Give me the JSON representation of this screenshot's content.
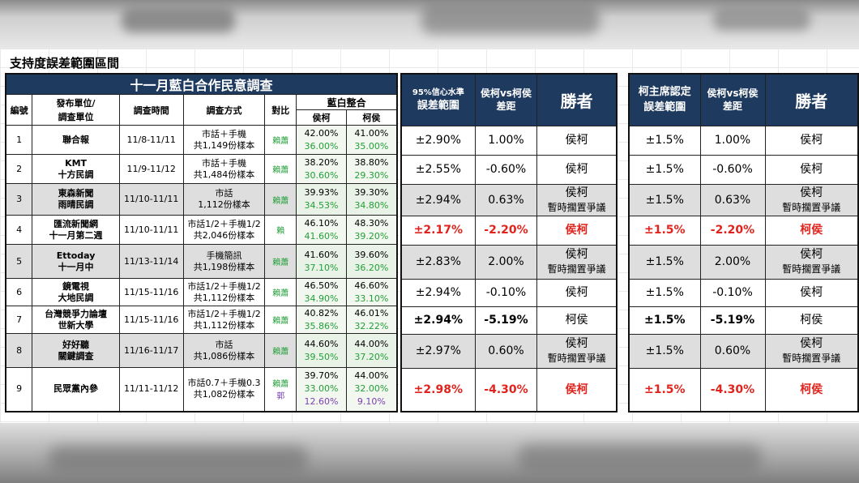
{
  "page_title": "支持度誤差範圍區間",
  "main_table": {
    "title": "十一月藍白合作民意調查",
    "headers": {
      "no": "編號",
      "publisher": "發布單位/\n調查單位",
      "period": "調查時間",
      "method": "調查方式",
      "compare": "對比",
      "combo": "藍白整合",
      "hk": "侯柯",
      "kh": "柯侯"
    },
    "rows": [
      {
        "no": "1",
        "pub1": "聯合報",
        "pub2": "",
        "period": "11/8-11/11",
        "m1": "市話＋手機",
        "m2": "共1,149份樣本",
        "cmp1": "賴蕭",
        "cmp2": "",
        "hk1": "42.00%",
        "hk2": "36.00%",
        "hk3": "",
        "kh1": "41.00%",
        "kh2": "35.00%",
        "kh3": ""
      },
      {
        "no": "2",
        "pub1": "KMT",
        "pub2": "十方民調",
        "period": "11/9-11/12",
        "m1": "市話＋手機",
        "m2": "共1,484份樣本",
        "cmp1": "賴蕭",
        "cmp2": "",
        "hk1": "38.20%",
        "hk2": "30.60%",
        "hk3": "",
        "kh1": "38.80%",
        "kh2": "29.30%",
        "kh3": ""
      },
      {
        "no": "3",
        "pub1": "東森新聞",
        "pub2": "雨晴民調",
        "period": "11/10-11/11",
        "m1": "市話",
        "m2": "1,112份樣本",
        "cmp1": "賴蕭",
        "cmp2": "",
        "hk1": "39.93%",
        "hk2": "34.53%",
        "hk3": "",
        "kh1": "39.30%",
        "kh2": "34.80%",
        "kh3": ""
      },
      {
        "no": "4",
        "pub1": "匯流新聞網",
        "pub2": "十一月第二週",
        "period": "11/10-11/11",
        "m1": "市話1/2＋手機1/2",
        "m2": "共2,046份樣本",
        "cmp1": "賴",
        "cmp2": "",
        "hk1": "46.10%",
        "hk2": "41.60%",
        "hk3": "",
        "kh1": "48.30%",
        "kh2": "39.20%",
        "kh3": ""
      },
      {
        "no": "5",
        "pub1": "Ettoday",
        "pub2": "十一月中",
        "period": "11/13-11/14",
        "m1": "手機簡訊",
        "m2": "共1,198份樣本",
        "cmp1": "賴蕭",
        "cmp2": "",
        "hk1": "41.60%",
        "hk2": "37.10%",
        "hk3": "",
        "kh1": "39.60%",
        "kh2": "36.20%",
        "kh3": ""
      },
      {
        "no": "6",
        "pub1": "鏡電視",
        "pub2": "大地民調",
        "period": "11/15-11/16",
        "m1": "市話1/2＋手機1/2",
        "m2": "共1,112份樣本",
        "cmp1": "賴蕭",
        "cmp2": "",
        "hk1": "46.50%",
        "hk2": "34.90%",
        "hk3": "",
        "kh1": "46.60%",
        "kh2": "33.10%",
        "kh3": ""
      },
      {
        "no": "7",
        "pub1": "台灣競爭力論壇",
        "pub2": "世新大學",
        "period": "11/15-11/16",
        "m1": "市話1/2＋手機1/2",
        "m2": "共1,112份樣本",
        "cmp1": "賴蕭",
        "cmp2": "",
        "hk1": "40.82%",
        "hk2": "35.86%",
        "hk3": "",
        "kh1": "46.01%",
        "kh2": "32.22%",
        "kh3": ""
      },
      {
        "no": "8",
        "pub1": "好好聽",
        "pub2": "關鍵調查",
        "period": "11/16-11/17",
        "m1": "市話",
        "m2": "共1,086份樣本",
        "cmp1": "賴蕭",
        "cmp2": "",
        "hk1": "44.60%",
        "hk2": "39.50%",
        "hk3": "",
        "kh1": "44.00%",
        "kh2": "37.20%",
        "kh3": ""
      },
      {
        "no": "9",
        "pub1": "民眾黨內參",
        "pub2": "",
        "period": "11/11-11/12",
        "m1": "市話0.7＋手機0.3",
        "m2": "共1,082份樣本",
        "cmp1": "賴蕭",
        "cmp2": "郭",
        "hk1": "39.70%",
        "hk2": "33.00%",
        "hk3": "12.60%",
        "kh1": "44.00%",
        "kh2": "32.00%",
        "kh3": "9.10%"
      }
    ]
  },
  "table_95": {
    "headers": {
      "margin_top": "95%信心水準",
      "margin_bottom": "誤差範圍",
      "diff_top": "侯柯vs柯侯",
      "diff_bottom": "差距",
      "winner": "勝者"
    },
    "rows": [
      {
        "margin": "±2.90%",
        "diff": "1.00%",
        "w1": "侯柯",
        "w2": "",
        "red": false
      },
      {
        "margin": "±2.55%",
        "diff": "-0.60%",
        "w1": "侯柯",
        "w2": "",
        "red": false
      },
      {
        "margin": "±2.94%",
        "diff": "0.63%",
        "w1": "侯柯",
        "w2": "暫時擱置爭議",
        "red": false
      },
      {
        "margin": "±2.17%",
        "diff": "-2.20%",
        "w1": "侯柯",
        "w2": "",
        "red": true
      },
      {
        "margin": "±2.83%",
        "diff": "2.00%",
        "w1": "侯柯",
        "w2": "暫時擱置爭議",
        "red": false
      },
      {
        "margin": "±2.94%",
        "diff": "-0.10%",
        "w1": "侯柯",
        "w2": "",
        "red": false
      },
      {
        "margin": "±2.94%",
        "diff": "-5.19%",
        "w1": "柯侯",
        "w2": "",
        "red": false,
        "bold": true
      },
      {
        "margin": "±2.97%",
        "diff": "0.60%",
        "w1": "侯柯",
        "w2": "暫時擱置爭議",
        "red": false
      },
      {
        "margin": "±2.98%",
        "diff": "-4.30%",
        "w1": "侯柯",
        "w2": "",
        "red": true
      }
    ]
  },
  "table_ko": {
    "headers": {
      "margin_top": "柯主席認定",
      "margin_bottom": "誤差範圍",
      "diff_top": "侯柯vs柯侯",
      "diff_bottom": "差距",
      "winner": "勝者"
    },
    "rows": [
      {
        "margin": "±1.5%",
        "diff": "1.00%",
        "w1": "侯柯",
        "w2": "",
        "red": false
      },
      {
        "margin": "±1.5%",
        "diff": "-0.60%",
        "w1": "侯柯",
        "w2": "",
        "red": false
      },
      {
        "margin": "±1.5%",
        "diff": "0.63%",
        "w1": "侯柯",
        "w2": "暫時擱置爭議",
        "red": false
      },
      {
        "margin": "±1.5%",
        "diff": "-2.20%",
        "w1": "柯侯",
        "w2": "",
        "red": true
      },
      {
        "margin": "±1.5%",
        "diff": "2.00%",
        "w1": "侯柯",
        "w2": "暫時擱置爭議",
        "red": false
      },
      {
        "margin": "±1.5%",
        "diff": "-0.10%",
        "w1": "侯柯",
        "w2": "",
        "red": false
      },
      {
        "margin": "±1.5%",
        "diff": "-5.19%",
        "w1": "柯侯",
        "w2": "",
        "red": false,
        "bold": true
      },
      {
        "margin": "±1.5%",
        "diff": "0.60%",
        "w1": "侯柯",
        "w2": "暫時擱置爭議",
        "red": false
      },
      {
        "margin": "±1.5%",
        "diff": "-4.30%",
        "w1": "柯侯",
        "w2": "",
        "red": true
      }
    ]
  },
  "colors": {
    "navy": "#1f3a5f",
    "red": "#e0231c",
    "green": "#22a038",
    "purple": "#7a3fb0",
    "shade": "#dedede"
  }
}
